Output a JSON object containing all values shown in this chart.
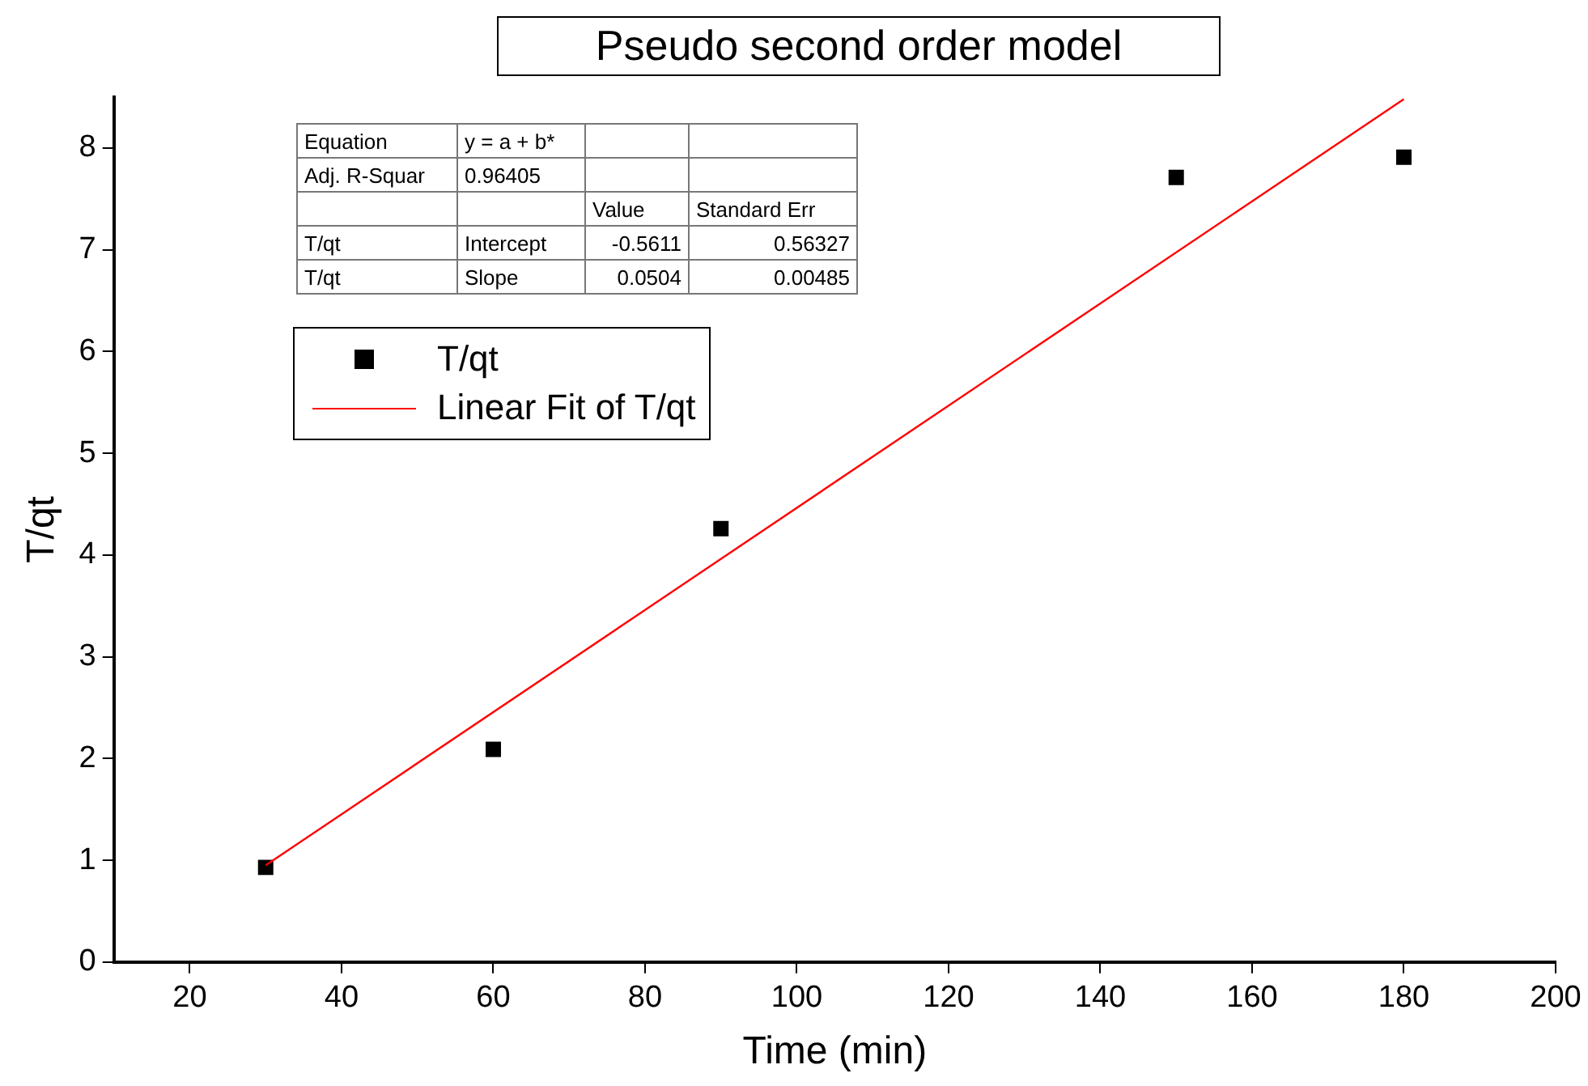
{
  "chart_data": {
    "type": "scatter",
    "title": "Pseudo second order model",
    "xlabel": "Time (min)",
    "ylabel": "T/qt",
    "xlim": [
      10,
      200
    ],
    "xticks": [
      20,
      40,
      60,
      80,
      100,
      120,
      140,
      160,
      180,
      200
    ],
    "ylim": [
      0,
      8.5
    ],
    "yticks": [
      0,
      1,
      2,
      3,
      4,
      5,
      6,
      7,
      8
    ],
    "grid": false,
    "legend": "top left",
    "marker": "square",
    "series": [
      {
        "name": "T/qt",
        "color": "#000000",
        "x": [
          30,
          60,
          90,
          150,
          180
        ],
        "values": [
          0.93,
          2.09,
          4.26,
          7.71,
          7.91
        ]
      },
      {
        "name": "Linear Fit of T/qt",
        "type": "line",
        "color": "#ff0000",
        "x": [
          30,
          180
        ],
        "values": [
          0.95,
          8.48
        ],
        "marker": "none",
        "line_style": "solid"
      }
    ],
    "annotations": [
      "Equation",
      "y = a + b*",
      "Adj. R-Squar",
      "0.96405",
      "Value",
      "Standard Err",
      "T/qt",
      "Intercept",
      "-0.5611",
      "0.56327",
      "T/qt",
      "Slope",
      "0.0504",
      "0.00485"
    ]
  }
}
